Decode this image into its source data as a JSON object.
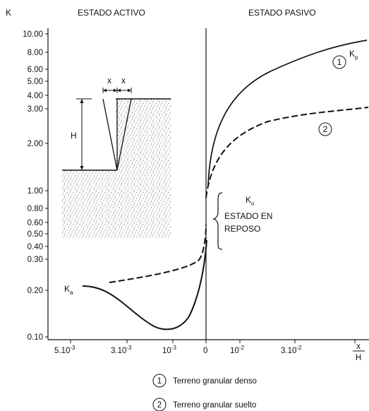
{
  "header": {
    "y_axis_symbol": "K",
    "left_title": "ESTADO ACTIVO",
    "right_title": "ESTADO PASIVO"
  },
  "y_ticks": [
    "10.00",
    "8.00",
    "6.00",
    "5.00",
    "4.00",
    "3.00",
    "2.00",
    "1.00",
    "0.80",
    "0.60",
    "0.50",
    "0.40",
    "0.30",
    "0.20",
    "0.10"
  ],
  "x_ticks": [
    {
      "base": "5.10",
      "exp": "-3"
    },
    {
      "base": "3.10",
      "exp": "-3"
    },
    {
      "base": "10",
      "exp": "-3"
    },
    {
      "base": "0",
      "exp": ""
    },
    {
      "base": "10",
      "exp": "-2"
    },
    {
      "base": "3.10",
      "exp": "-2"
    }
  ],
  "x_axis_label": {
    "num": "x",
    "den": "H"
  },
  "inset": {
    "x1": "x",
    "x2": "x",
    "height": "H"
  },
  "curves": {
    "kp_label": "K",
    "kp_sub": "p",
    "ka_label": "K",
    "ka_sub": "a",
    "k0_label": "K",
    "k0_sub": "o",
    "k0_text_line1": "ESTADO EN",
    "k0_text_line2": "REPOSO",
    "marker_1": "1",
    "marker_2": "2"
  },
  "legend": [
    {
      "marker": "1",
      "text": "Terreno granular denso"
    },
    {
      "marker": "2",
      "text": "Terreno granular suelto"
    }
  ]
}
